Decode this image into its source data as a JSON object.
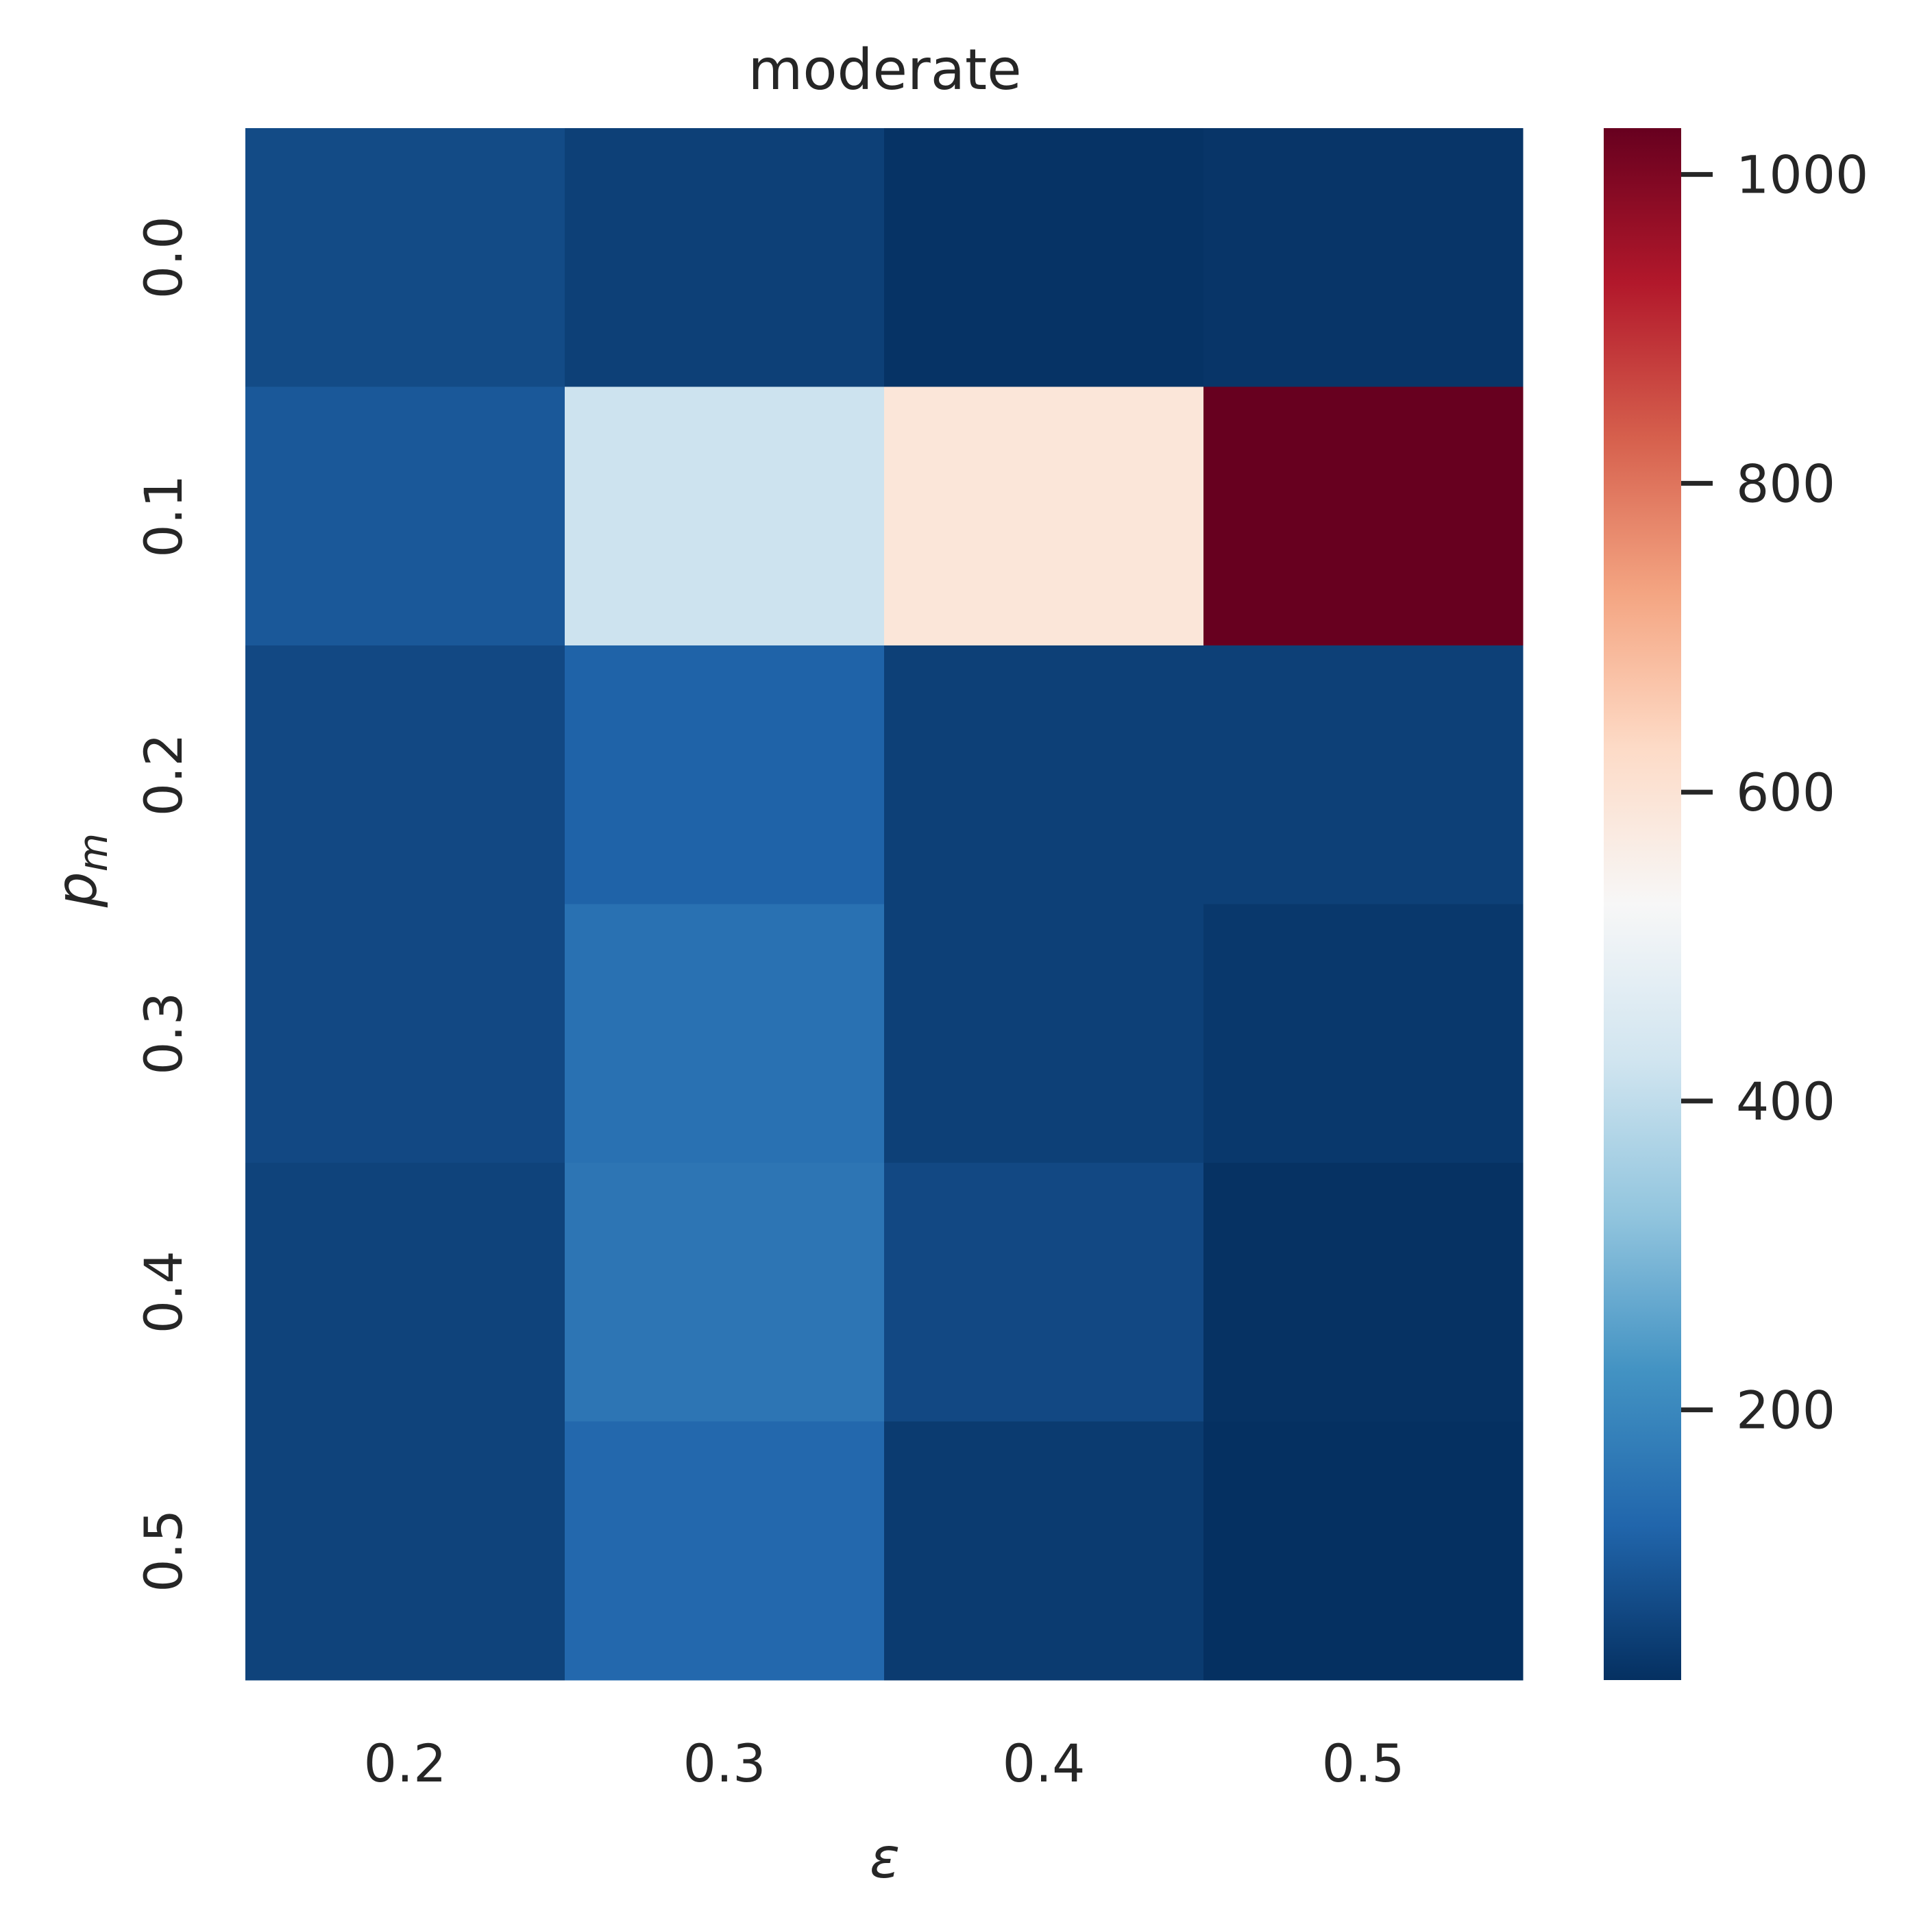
{
  "chart_data": {
    "type": "heatmap",
    "title": "moderate",
    "xlabel": "ε",
    "ylabel": "p",
    "ylabel_subscript": "m",
    "x_categories": [
      "0.2",
      "0.3",
      "0.4",
      "0.5"
    ],
    "y_categories": [
      "0.0",
      "0.1",
      "0.2",
      "0.3",
      "0.4",
      "0.5"
    ],
    "values": [
      [
        75,
        55,
        30,
        35
      ],
      [
        100,
        420,
        590,
        1030
      ],
      [
        70,
        120,
        55,
        55
      ],
      [
        70,
        150,
        55,
        40
      ],
      [
        60,
        160,
        70,
        28
      ],
      [
        60,
        130,
        45,
        25
      ]
    ],
    "colorbar": {
      "min": 25,
      "max": 1030,
      "ticks": [
        "200",
        "400",
        "600",
        "800",
        "1000"
      ],
      "colormap": "RdBu_r"
    },
    "grid": false
  }
}
